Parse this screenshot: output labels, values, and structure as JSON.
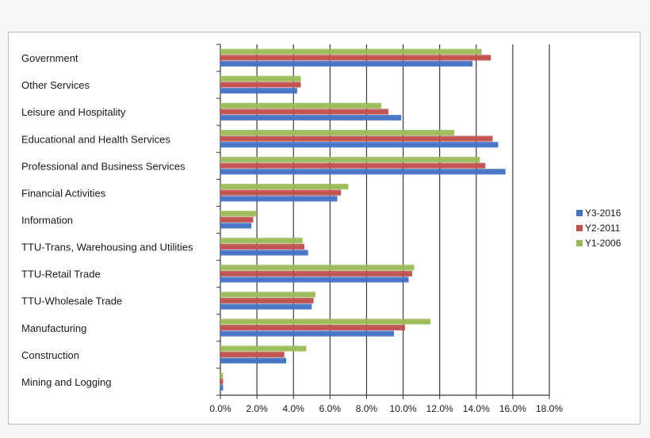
{
  "chart_data": {
    "type": "bar",
    "orientation": "horizontal",
    "title": "",
    "xlabel": "",
    "ylabel": "",
    "xlim": [
      0,
      18
    ],
    "x_ticks": [
      "0.0%",
      "2.0%",
      "4.0%",
      "6.0%",
      "8.0%",
      "10.0%",
      "12.0%",
      "14.0%",
      "16.0%",
      "18.0%"
    ],
    "grid": "vertical major gridlines",
    "legend_position": "right",
    "categories": [
      "Government",
      "Other Services",
      "Leisure and Hospitality",
      "Educational and Health Services",
      "Professional and Business Services",
      "Financial Activities",
      "Information",
      "TTU-Trans, Warehousing and Utilities",
      "TTU-Retail Trade",
      "TTU-Wholesale Trade",
      "Manufacturing",
      "Construction",
      "Mining and Logging"
    ],
    "series": [
      {
        "name": "Y3-2016",
        "color": "#4472c4",
        "values": [
          13.8,
          4.2,
          9.9,
          15.2,
          15.6,
          6.4,
          1.7,
          4.8,
          10.3,
          5.0,
          9.5,
          3.6,
          0.15
        ]
      },
      {
        "name": "Y2-2011",
        "color": "#c0504d",
        "values": [
          14.8,
          4.4,
          9.2,
          14.9,
          14.5,
          6.6,
          1.8,
          4.6,
          10.5,
          5.1,
          10.1,
          3.5,
          0.15
        ]
      },
      {
        "name": "Y1-2006",
        "color": "#9bbb59",
        "values": [
          14.3,
          4.4,
          8.8,
          12.8,
          14.2,
          7.0,
          2.0,
          4.5,
          10.6,
          5.2,
          11.5,
          4.7,
          0.15
        ]
      }
    ],
    "legend_order": [
      "Y3-2016",
      "Y2-2011",
      "Y1-2006"
    ]
  }
}
